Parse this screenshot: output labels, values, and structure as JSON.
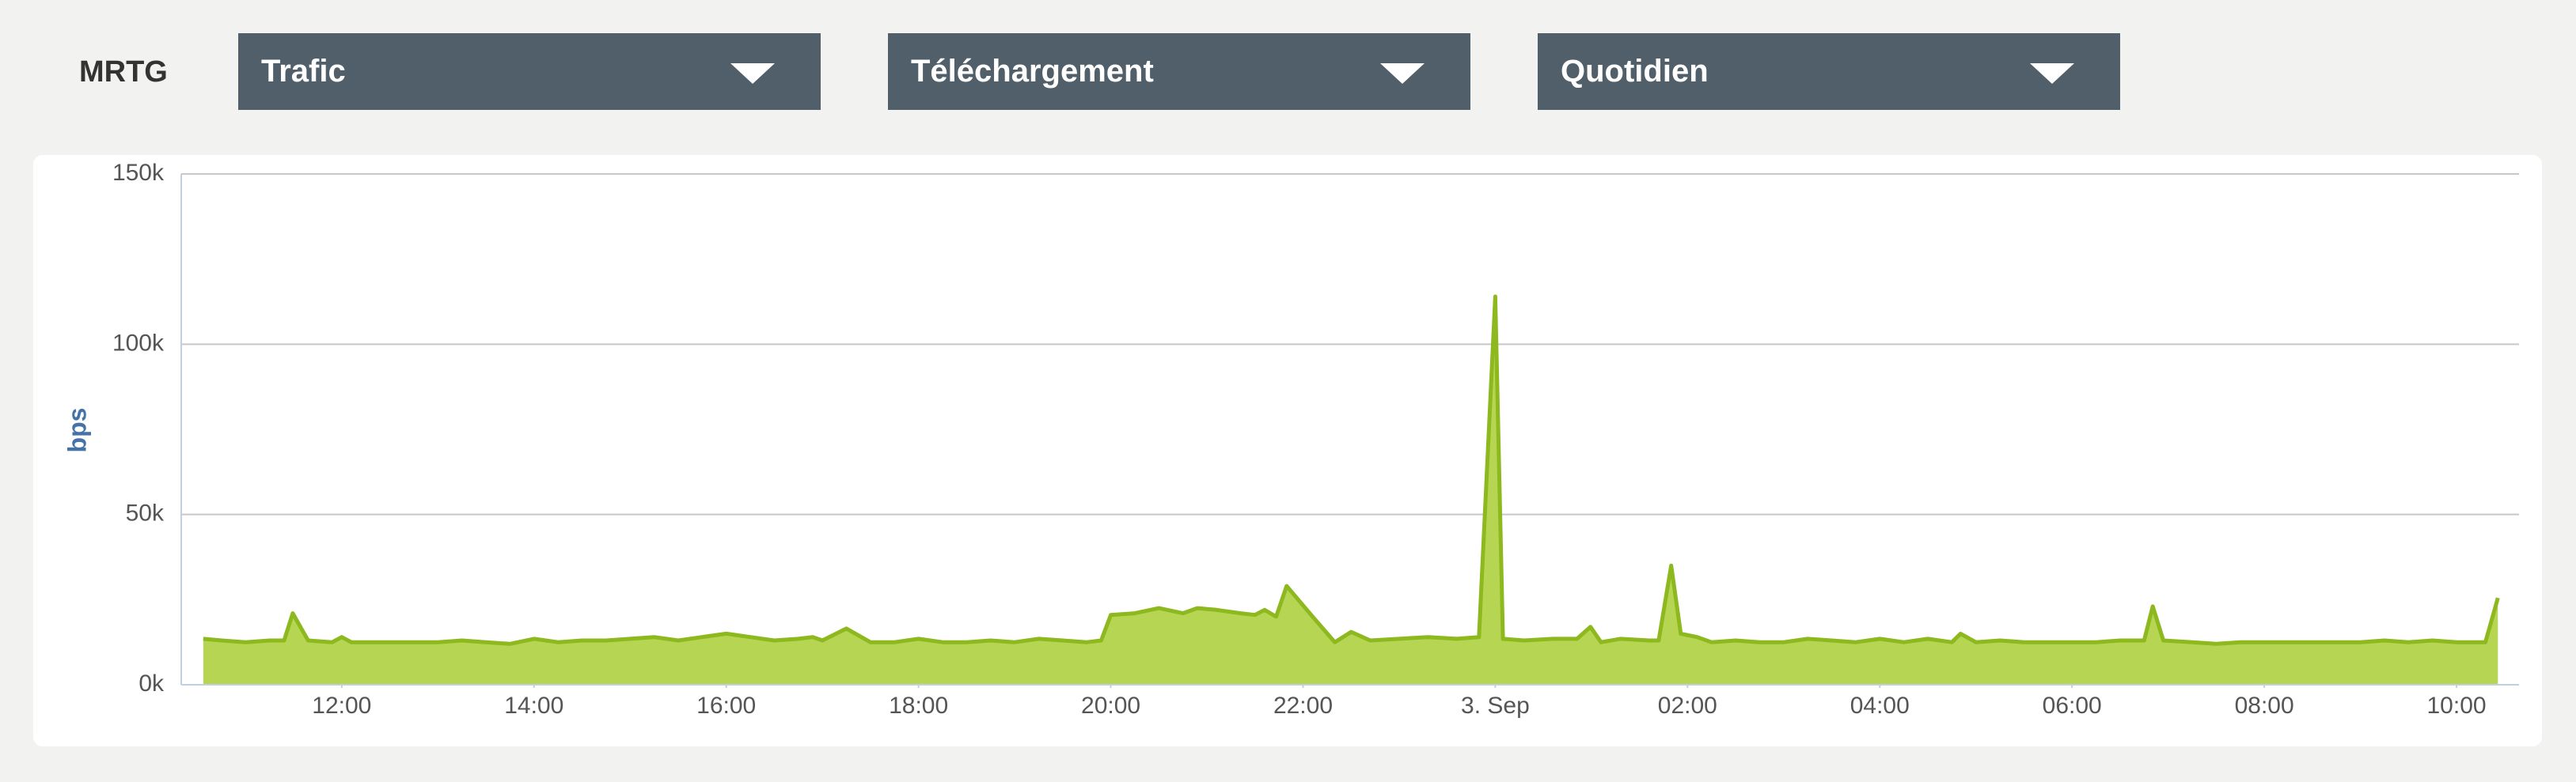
{
  "header": {
    "title": "MRTG",
    "dropdowns": [
      "Trafic",
      "Téléchargement",
      "Quotidien"
    ]
  },
  "chart_data": {
    "type": "area",
    "y_label": "bps",
    "x": [
      10.56,
      10.75,
      11.0,
      11.25,
      11.4,
      11.49,
      11.65,
      11.9,
      12.0,
      12.1,
      12.4,
      12.75,
      13.0,
      13.25,
      13.5,
      13.75,
      14.0,
      14.25,
      14.5,
      14.75,
      15.0,
      15.25,
      15.5,
      15.75,
      16.0,
      16.25,
      16.5,
      16.75,
      16.9,
      17.0,
      17.25,
      17.5,
      17.75,
      18.0,
      18.25,
      18.5,
      18.75,
      19.0,
      19.25,
      19.5,
      19.75,
      19.9,
      20.0,
      20.25,
      20.5,
      20.75,
      20.9,
      21.1,
      21.35,
      21.5,
      21.6,
      21.72,
      21.83,
      22.1,
      22.33,
      22.5,
      22.7,
      23.0,
      23.3,
      23.6,
      23.83,
      24.0,
      24.08,
      24.3,
      24.6,
      24.85,
      24.99,
      25.1,
      25.3,
      25.6,
      25.7,
      25.83,
      25.93,
      26.1,
      26.25,
      26.5,
      26.75,
      27.0,
      27.25,
      27.5,
      27.75,
      28.0,
      28.25,
      28.5,
      28.75,
      28.84,
      29.0,
      29.25,
      29.5,
      29.75,
      30.0,
      30.25,
      30.5,
      30.75,
      30.84,
      30.95,
      31.25,
      31.5,
      31.75,
      32.0,
      32.25,
      32.5,
      32.75,
      33.0,
      33.25,
      33.5,
      33.75,
      34.0,
      34.3,
      34.43
    ],
    "series": [
      {
        "color": "#b5d553",
        "values": [
          13500,
          13000,
          12500,
          13000,
          13000,
          21000,
          13000,
          12500,
          14000,
          12500,
          12500,
          12500,
          12500,
          13000,
          12500,
          12000,
          13500,
          12500,
          13000,
          13000,
          13500,
          14000,
          13000,
          14000,
          15000,
          14000,
          13000,
          13500,
          14000,
          13000,
          16500,
          12500,
          12500,
          13500,
          12500,
          12500,
          13000,
          12500,
          13500,
          13000,
          12500,
          13000,
          20500,
          21000,
          22500,
          21000,
          22500,
          22000,
          21000,
          20500,
          22000,
          20000,
          29000,
          20000,
          12500,
          15500,
          13000,
          13500,
          14000,
          13500,
          14000,
          114000,
          13500,
          13000,
          13500,
          13500,
          17000,
          12500,
          13500,
          13000,
          13000,
          35000,
          15000,
          14000,
          12500,
          13000,
          12500,
          12500,
          13500,
          13000,
          12500,
          13500,
          12500,
          13500,
          12500,
          15000,
          12500,
          13000,
          12500,
          12500,
          12500,
          12500,
          13000,
          13000,
          23000,
          13000,
          12500,
          12000,
          12500,
          12500,
          12500,
          12500,
          12500,
          12500,
          13000,
          12500,
          13000,
          12500,
          12500,
          25500
        ]
      }
    ],
    "xlim": [
      10.33,
      34.65
    ],
    "xticks": [
      {
        "value": 12,
        "label": "12:00"
      },
      {
        "value": 14,
        "label": "14:00"
      },
      {
        "value": 16,
        "label": "16:00"
      },
      {
        "value": 18,
        "label": "18:00"
      },
      {
        "value": 20,
        "label": "20:00"
      },
      {
        "value": 22,
        "label": "22:00"
      },
      {
        "value": 24,
        "label": "3. Sep"
      },
      {
        "value": 26,
        "label": "02:00"
      },
      {
        "value": 28,
        "label": "04:00"
      },
      {
        "value": 30,
        "label": "06:00"
      },
      {
        "value": 32,
        "label": "08:00"
      },
      {
        "value": 34,
        "label": "10:00"
      }
    ],
    "ylim": [
      0,
      150000
    ],
    "yticks": [
      {
        "value": 0,
        "label": "0k"
      },
      {
        "value": 50000,
        "label": "50k"
      },
      {
        "value": 100000,
        "label": "100k"
      },
      {
        "value": 150000,
        "label": "150k"
      }
    ],
    "grid": true
  }
}
